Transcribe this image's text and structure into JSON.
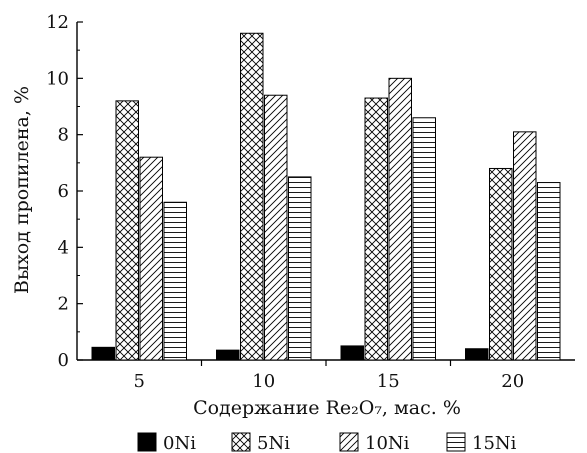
{
  "chart_data": {
    "type": "bar",
    "categories": [
      "5",
      "10",
      "15",
      "20"
    ],
    "series": [
      {
        "name": "0Ni",
        "values": [
          0.45,
          0.35,
          0.5,
          0.4
        ],
        "pattern": "solid"
      },
      {
        "name": "5Ni",
        "values": [
          9.2,
          11.6,
          9.3,
          6.8
        ],
        "pattern": "crosshatch"
      },
      {
        "name": "10Ni",
        "values": [
          7.2,
          9.4,
          10.0,
          8.1
        ],
        "pattern": "diagonal"
      },
      {
        "name": "15Ni",
        "values": [
          5.6,
          6.5,
          8.6,
          6.3
        ],
        "pattern": "horizontal"
      }
    ],
    "ylim": [
      0,
      12
    ],
    "yticks": [
      "0",
      "2",
      "4",
      "6",
      "8",
      "10",
      "12"
    ],
    "xlabel": "Содержание Re₂O₇, мас. %",
    "ylabel": "Выход пропилена, %",
    "legend_position": "bottom",
    "grid": false,
    "bar_color": "#000000"
  }
}
